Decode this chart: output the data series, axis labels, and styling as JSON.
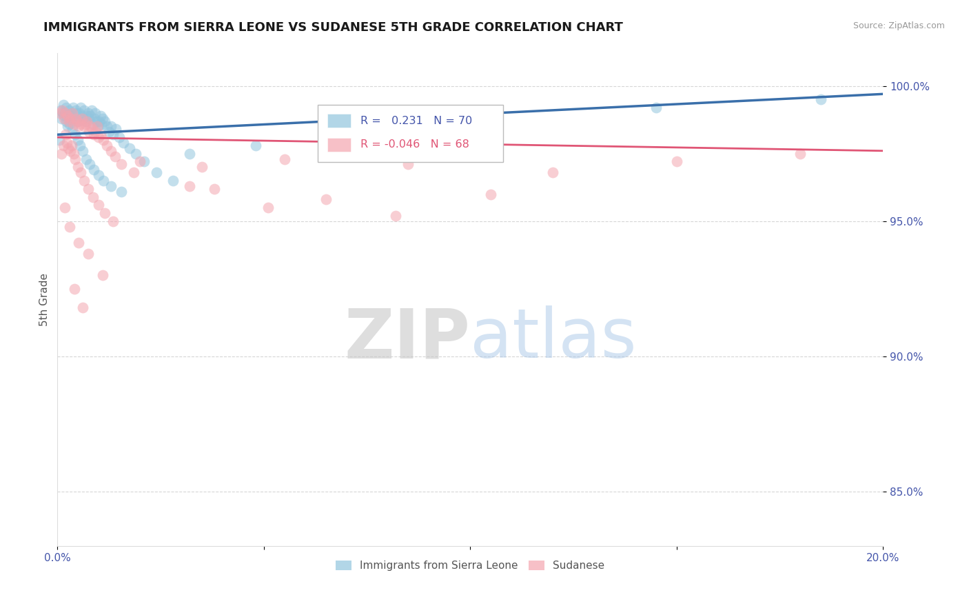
{
  "title": "IMMIGRANTS FROM SIERRA LEONE VS SUDANESE 5TH GRADE CORRELATION CHART",
  "source": "Source: ZipAtlas.com",
  "ylabel": "5th Grade",
  "legend_blue_r": "0.231",
  "legend_blue_n": "70",
  "legend_pink_r": "-0.046",
  "legend_pink_n": "68",
  "watermark_zip": "ZIP",
  "watermark_atlas": "atlas",
  "blue_color": "#92c5de",
  "pink_color": "#f4a6b0",
  "blue_line_color": "#3a6faa",
  "pink_line_color": "#e05575",
  "blue_scatter_x": [
    0.08,
    0.15,
    0.18,
    0.22,
    0.28,
    0.32,
    0.35,
    0.38,
    0.41,
    0.44,
    0.47,
    0.5,
    0.53,
    0.56,
    0.59,
    0.62,
    0.65,
    0.68,
    0.71,
    0.74,
    0.77,
    0.8,
    0.83,
    0.86,
    0.89,
    0.92,
    0.95,
    0.98,
    1.01,
    1.04,
    1.07,
    1.1,
    1.15,
    1.2,
    1.25,
    1.3,
    1.35,
    1.42,
    1.5,
    1.6,
    1.75,
    1.9,
    2.1,
    2.4,
    2.8,
    0.05,
    0.1,
    0.13,
    0.17,
    0.21,
    0.25,
    0.29,
    0.33,
    0.37,
    0.43,
    0.49,
    0.55,
    0.61,
    0.69,
    0.78,
    0.88,
    0.99,
    1.12,
    1.3,
    1.55,
    3.2,
    4.8,
    7.0,
    14.5,
    18.5
  ],
  "blue_scatter_y": [
    99.1,
    99.3,
    99.0,
    99.2,
    99.1,
    98.9,
    99.0,
    99.2,
    98.8,
    99.1,
    99.0,
    98.7,
    99.0,
    99.2,
    98.9,
    98.8,
    99.1,
    98.7,
    98.9,
    99.0,
    98.8,
    98.9,
    99.1,
    98.6,
    98.8,
    99.0,
    98.7,
    98.5,
    98.7,
    98.9,
    98.6,
    98.8,
    98.7,
    98.5,
    98.3,
    98.5,
    98.2,
    98.4,
    98.1,
    97.9,
    97.7,
    97.5,
    97.2,
    96.8,
    96.5,
    98.0,
    98.8,
    99.0,
    98.9,
    98.7,
    98.5,
    98.6,
    98.8,
    98.4,
    98.2,
    98.0,
    97.8,
    97.6,
    97.3,
    97.1,
    96.9,
    96.7,
    96.5,
    96.3,
    96.1,
    97.5,
    97.8,
    98.2,
    99.2,
    99.5
  ],
  "pink_scatter_x": [
    0.06,
    0.11,
    0.16,
    0.2,
    0.24,
    0.28,
    0.32,
    0.36,
    0.4,
    0.44,
    0.48,
    0.52,
    0.56,
    0.6,
    0.64,
    0.68,
    0.72,
    0.76,
    0.8,
    0.84,
    0.88,
    0.92,
    0.96,
    1.0,
    1.05,
    1.12,
    1.2,
    1.3,
    1.4,
    1.55,
    0.09,
    0.14,
    0.19,
    0.23,
    0.27,
    0.31,
    0.35,
    0.39,
    0.43,
    0.5,
    0.57,
    0.65,
    0.75,
    0.87,
    1.0,
    1.15,
    1.35,
    2.0,
    3.5,
    5.5,
    8.5,
    12.0,
    15.0,
    18.0,
    0.18,
    0.3,
    0.52,
    0.75,
    1.1,
    3.8,
    6.5,
    10.5,
    0.42,
    0.62,
    1.85,
    3.2,
    5.1,
    8.2
  ],
  "pink_scatter_y": [
    99.0,
    99.1,
    98.8,
    99.0,
    98.9,
    98.7,
    98.8,
    99.0,
    98.6,
    98.8,
    98.7,
    98.5,
    98.6,
    98.8,
    98.5,
    98.6,
    98.7,
    98.3,
    98.5,
    98.4,
    98.2,
    98.3,
    98.5,
    98.1,
    98.2,
    98.0,
    97.8,
    97.6,
    97.4,
    97.1,
    97.5,
    97.8,
    98.2,
    97.9,
    97.7,
    97.6,
    97.8,
    97.5,
    97.3,
    97.0,
    96.8,
    96.5,
    96.2,
    95.9,
    95.6,
    95.3,
    95.0,
    97.2,
    97.0,
    97.3,
    97.1,
    96.8,
    97.2,
    97.5,
    95.5,
    94.8,
    94.2,
    93.8,
    93.0,
    96.2,
    95.8,
    96.0,
    92.5,
    91.8,
    96.8,
    96.3,
    95.5,
    95.2
  ],
  "blue_trend_x": [
    0.0,
    20.0
  ],
  "blue_trend_y": [
    98.2,
    99.7
  ],
  "pink_trend_x": [
    0.0,
    20.0
  ],
  "pink_trend_y": [
    98.1,
    97.6
  ],
  "xlim": [
    0.0,
    20.0
  ],
  "ylim": [
    83.0,
    101.2
  ],
  "ytick_vals": [
    85.0,
    90.0,
    95.0,
    100.0
  ],
  "ytick_labels": [
    "85.0%",
    "90.0%",
    "95.0%",
    "100.0%"
  ],
  "xtick_vals": [
    0.0,
    5.0,
    10.0,
    15.0,
    20.0
  ],
  "xtick_show": [
    "0.0%",
    "",
    "",
    "",
    "20.0%"
  ],
  "grid_color": "#cccccc",
  "title_fontsize": 13,
  "axis_label_color": "#555555",
  "tick_color": "#4455aa",
  "background_color": "#ffffff"
}
